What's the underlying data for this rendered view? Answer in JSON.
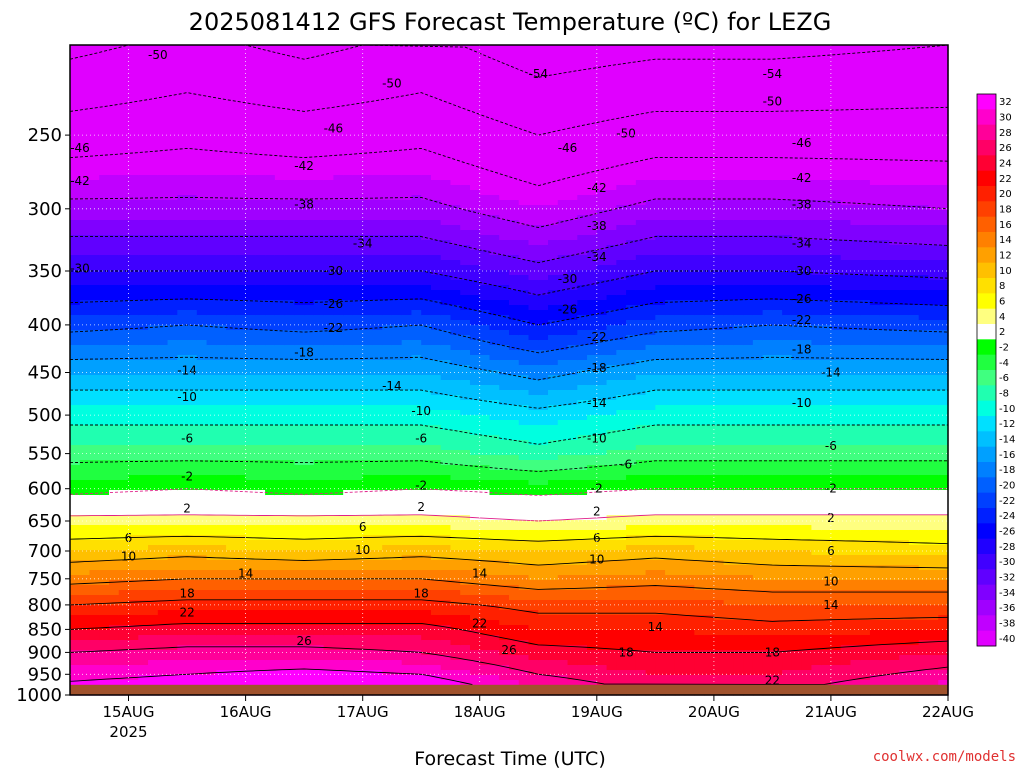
{
  "chart_data": {
    "type": "heatmap",
    "title": "2025081412 GFS Forecast Temperature (ºC) for LEZG",
    "xlabel": "Forecast Time (UTC)",
    "ylabel": "",
    "credit": "coolwx.com/models",
    "y_scale": "log",
    "y_inverted": true,
    "ylim": [
      1000,
      200
    ],
    "yticks": [
      250,
      300,
      350,
      400,
      450,
      500,
      550,
      600,
      650,
      700,
      750,
      800,
      850,
      900,
      950,
      1000
    ],
    "xlim": [
      "2025-08-14T12:00",
      "2025-08-22T00:00"
    ],
    "x_ticks": [
      {
        "label": "15AUG",
        "sub": "2025",
        "time": "2025-08-15T00:00"
      },
      {
        "label": "16AUG",
        "sub": "",
        "time": "2025-08-16T00:00"
      },
      {
        "label": "17AUG",
        "sub": "",
        "time": "2025-08-17T00:00"
      },
      {
        "label": "18AUG",
        "sub": "",
        "time": "2025-08-18T00:00"
      },
      {
        "label": "19AUG",
        "sub": "",
        "time": "2025-08-19T00:00"
      },
      {
        "label": "20AUG",
        "sub": "",
        "time": "2025-08-20T00:00"
      },
      {
        "label": "21AUG",
        "sub": "",
        "time": "2025-08-21T00:00"
      },
      {
        "label": "22AUG",
        "sub": "",
        "time": "2025-08-22T00:00"
      }
    ],
    "grid": true,
    "ground_level_hpa": 975,
    "ground_color": "#a0522d",
    "colorbar": {
      "placement": "right",
      "labels": [
        "32",
        "30",
        "28",
        "26",
        "24",
        "22",
        "20",
        "18",
        "16",
        "14",
        "12",
        "10",
        "8",
        "6",
        "4",
        "2",
        "-2",
        "-4",
        "-6",
        "-8",
        "-10",
        "-12",
        "-14",
        "-16",
        "-18",
        "-20",
        "-22",
        "-24",
        "-26",
        "-28",
        "-30",
        "-32",
        "-34",
        "-36",
        "-38",
        "-40"
      ],
      "colors": [
        "#ff00ff",
        "#ff00cc",
        "#ff0099",
        "#ff0066",
        "#ff0033",
        "#ff0000",
        "#ff2000",
        "#ff4000",
        "#ff6000",
        "#ff8000",
        "#ffa000",
        "#ffc000",
        "#ffe000",
        "#ffff00",
        "#ffff80",
        "#ffffff",
        "#00ff00",
        "#20ff40",
        "#40ff80",
        "#20ffb0",
        "#00ffe0",
        "#00e0ff",
        "#00c0ff",
        "#00a0ff",
        "#0080ff",
        "#0060ff",
        "#0040ff",
        "#0020ff",
        "#0000ff",
        "#2000ff",
        "#4000ff",
        "#6000ff",
        "#8000ff",
        "#a000ff",
        "#c000ff",
        "#e000ff"
      ]
    },
    "profile_hours": [
      0,
      24,
      48,
      72,
      96,
      120,
      144,
      180
    ],
    "profile_pressure": [
      250,
      300,
      350,
      400,
      450,
      500,
      550,
      600,
      650,
      700,
      750,
      800,
      850,
      900,
      950
    ],
    "profile_temperature": [
      [
        -44,
        -37,
        -30,
        -23,
        -16,
        -11,
        -7,
        -3,
        3,
        8,
        13,
        18,
        22,
        26,
        29
      ],
      [
        -43,
        -37,
        -30,
        -22,
        -16,
        -11,
        -7,
        -2,
        3,
        9,
        14,
        19,
        23,
        27,
        30
      ],
      [
        -44,
        -37,
        -30,
        -23,
        -16,
        -11,
        -7,
        -3,
        3,
        8,
        14,
        19,
        23,
        27,
        31
      ],
      [
        -43,
        -37,
        -30,
        -22,
        -16,
        -11,
        -7,
        -2,
        3,
        9,
        14,
        19,
        23,
        26,
        30
      ],
      [
        -46,
        -40,
        -33,
        -26,
        -19,
        -13,
        -9,
        -3,
        2,
        8,
        12,
        17,
        20,
        23,
        26
      ],
      [
        -44,
        -37,
        -30,
        -23,
        -16,
        -11,
        -7,
        -2,
        3,
        9,
        13,
        17,
        20,
        22,
        24
      ],
      [
        -44,
        -37,
        -30,
        -22,
        -16,
        -11,
        -7,
        -2,
        3,
        8,
        12,
        16,
        19,
        22,
        24
      ],
      [
        -44,
        -38,
        -31,
        -23,
        -16,
        -11,
        -7,
        -2,
        3,
        7,
        12,
        16,
        20,
        24,
        27
      ]
    ],
    "contour_labels": [
      {
        "text": "-50",
        "time": "2025-08-15T06:00",
        "p": 205
      },
      {
        "text": "-50",
        "time": "2025-08-17T06:00",
        "p": 220
      },
      {
        "text": "-54",
        "time": "2025-08-18T12:00",
        "p": 215
      },
      {
        "text": "-54",
        "time": "2025-08-20T12:00",
        "p": 215
      },
      {
        "text": "-50",
        "time": "2025-08-20T12:00",
        "p": 230
      },
      {
        "text": "-46",
        "time": "2025-08-14T12:00",
        "p": 258
      },
      {
        "text": "-46",
        "time": "2025-08-16T18:00",
        "p": 246
      },
      {
        "text": "-46",
        "time": "2025-08-18T18:00",
        "p": 258
      },
      {
        "text": "-46",
        "time": "2025-08-20T18:00",
        "p": 255
      },
      {
        "text": "-50",
        "time": "2025-08-19T06:00",
        "p": 249
      },
      {
        "text": "-42",
        "time": "2025-08-14T12:00",
        "p": 280
      },
      {
        "text": "-42",
        "time": "2025-08-16T12:00",
        "p": 270
      },
      {
        "text": "-42",
        "time": "2025-08-19T00:00",
        "p": 285
      },
      {
        "text": "-42",
        "time": "2025-08-20T18:00",
        "p": 278
      },
      {
        "text": "-38",
        "time": "2025-08-16T12:00",
        "p": 297
      },
      {
        "text": "-38",
        "time": "2025-08-19T00:00",
        "p": 313
      },
      {
        "text": "-38",
        "time": "2025-08-20T18:00",
        "p": 297
      },
      {
        "text": "-34",
        "time": "2025-08-17T00:00",
        "p": 327
      },
      {
        "text": "-34",
        "time": "2025-08-19T00:00",
        "p": 338
      },
      {
        "text": "-34",
        "time": "2025-08-20T18:00",
        "p": 327
      },
      {
        "text": "-30",
        "time": "2025-08-14T12:00",
        "p": 348
      },
      {
        "text": "-30",
        "time": "2025-08-16T18:00",
        "p": 350
      },
      {
        "text": "-30",
        "time": "2025-08-18T18:00",
        "p": 357
      },
      {
        "text": "-30",
        "time": "2025-08-20T18:00",
        "p": 350
      },
      {
        "text": "-26",
        "time": "2025-08-16T18:00",
        "p": 380
      },
      {
        "text": "-26",
        "time": "2025-08-18T18:00",
        "p": 385
      },
      {
        "text": "-26",
        "time": "2025-08-20T18:00",
        "p": 375
      },
      {
        "text": "-22",
        "time": "2025-08-16T18:00",
        "p": 403
      },
      {
        "text": "-22",
        "time": "2025-08-19T00:00",
        "p": 412
      },
      {
        "text": "-22",
        "time": "2025-08-20T18:00",
        "p": 395
      },
      {
        "text": "-18",
        "time": "2025-08-16T12:00",
        "p": 428
      },
      {
        "text": "-18",
        "time": "2025-08-19T00:00",
        "p": 445
      },
      {
        "text": "-18",
        "time": "2025-08-20T18:00",
        "p": 425
      },
      {
        "text": "-14",
        "time": "2025-08-15T12:00",
        "p": 448
      },
      {
        "text": "-14",
        "time": "2025-08-17T06:00",
        "p": 465
      },
      {
        "text": "-14",
        "time": "2025-08-19T00:00",
        "p": 485
      },
      {
        "text": "-14",
        "time": "2025-08-21T00:00",
        "p": 450
      },
      {
        "text": "-10",
        "time": "2025-08-15T12:00",
        "p": 478
      },
      {
        "text": "-10",
        "time": "2025-08-17T12:00",
        "p": 495
      },
      {
        "text": "-10",
        "time": "2025-08-19T00:00",
        "p": 530
      },
      {
        "text": "-10",
        "time": "2025-08-20T18:00",
        "p": 485
      },
      {
        "text": "-6",
        "time": "2025-08-15T12:00",
        "p": 530
      },
      {
        "text": "-6",
        "time": "2025-08-17T12:00",
        "p": 530
      },
      {
        "text": "-6",
        "time": "2025-08-19T06:00",
        "p": 565
      },
      {
        "text": "-6",
        "time": "2025-08-21T00:00",
        "p": 540
      },
      {
        "text": "-2",
        "time": "2025-08-15T12:00",
        "p": 582
      },
      {
        "text": "-2",
        "time": "2025-08-17T12:00",
        "p": 595
      },
      {
        "text": "-2",
        "time": "2025-08-19T00:00",
        "p": 600
      },
      {
        "text": "-2",
        "time": "2025-08-21T00:00",
        "p": 600
      },
      {
        "text": "2",
        "time": "2025-08-15T12:00",
        "p": 630
      },
      {
        "text": "2",
        "time": "2025-08-17T12:00",
        "p": 628
      },
      {
        "text": "2",
        "time": "2025-08-19T00:00",
        "p": 635
      },
      {
        "text": "2",
        "time": "2025-08-21T00:00",
        "p": 645
      },
      {
        "text": "6",
        "time": "2025-08-15T00:00",
        "p": 678
      },
      {
        "text": "6",
        "time": "2025-08-17T00:00",
        "p": 660
      },
      {
        "text": "6",
        "time": "2025-08-19T00:00",
        "p": 678
      },
      {
        "text": "6",
        "time": "2025-08-21T00:00",
        "p": 700
      },
      {
        "text": "10",
        "time": "2025-08-15T00:00",
        "p": 710
      },
      {
        "text": "10",
        "time": "2025-08-17T00:00",
        "p": 698
      },
      {
        "text": "10",
        "time": "2025-08-19T00:00",
        "p": 715
      },
      {
        "text": "10",
        "time": "2025-08-21T00:00",
        "p": 755
      },
      {
        "text": "14",
        "time": "2025-08-16T00:00",
        "p": 740
      },
      {
        "text": "14",
        "time": "2025-08-18T00:00",
        "p": 740
      },
      {
        "text": "14",
        "time": "2025-08-19T12:00",
        "p": 845
      },
      {
        "text": "14",
        "time": "2025-08-21T00:00",
        "p": 800
      },
      {
        "text": "18",
        "time": "2025-08-15T12:00",
        "p": 778
      },
      {
        "text": "18",
        "time": "2025-08-17T12:00",
        "p": 778
      },
      {
        "text": "18",
        "time": "2025-08-19T06:00",
        "p": 900
      },
      {
        "text": "18",
        "time": "2025-08-20T12:00",
        "p": 900
      },
      {
        "text": "22",
        "time": "2025-08-15T12:00",
        "p": 815
      },
      {
        "text": "22",
        "time": "2025-08-18T00:00",
        "p": 838
      },
      {
        "text": "22",
        "time": "2025-08-20T12:00",
        "p": 965
      },
      {
        "text": "26",
        "time": "2025-08-16T12:00",
        "p": 875
      },
      {
        "text": "26",
        "time": "2025-08-18T06:00",
        "p": 895
      }
    ]
  }
}
